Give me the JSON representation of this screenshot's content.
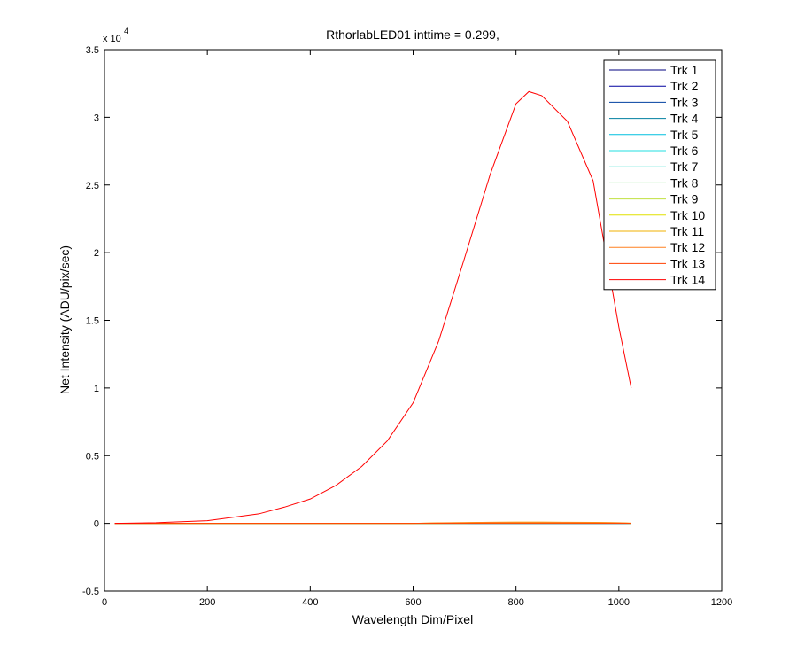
{
  "chart_data": {
    "type": "line",
    "title": "RthorlabLED01 inttime = 0.299,",
    "x_label": "Wavelength Dim/Pixel",
    "y_label": "Net Intensity (ADU/pix/sec)",
    "y_multiplier": "x 10",
    "y_exponent": "4",
    "xlim": [
      0,
      1200
    ],
    "xticks": [
      0,
      200,
      400,
      600,
      800,
      1000,
      1200
    ],
    "ylim": [
      -0.5,
      3.5
    ],
    "yticks": [
      -0.5,
      0,
      0.5,
      1,
      1.5,
      2,
      2.5,
      3,
      3.5
    ],
    "grid": false,
    "legend_position": "upper-right",
    "x": [
      20,
      100,
      200,
      300,
      350,
      400,
      450,
      500,
      550,
      600,
      650,
      700,
      750,
      800,
      825,
      850,
      900,
      950,
      1000,
      1024
    ],
    "series": [
      {
        "name": "Trk 1",
        "color": "#00007f",
        "values": [
          0,
          0,
          0,
          0,
          0,
          0,
          0,
          0,
          0,
          0,
          0,
          0,
          0,
          0,
          0,
          0,
          0,
          0,
          0,
          0
        ]
      },
      {
        "name": "Trk 2",
        "color": "#00009f",
        "values": [
          0,
          0,
          0,
          0,
          0,
          0,
          0,
          0,
          0,
          0,
          0,
          0,
          0,
          0,
          0,
          0,
          0,
          0,
          0,
          0
        ]
      },
      {
        "name": "Trk 3",
        "color": "#0040a0",
        "values": [
          0,
          0,
          0,
          0,
          0,
          0,
          0,
          0,
          0,
          0,
          0,
          0,
          0,
          0,
          0,
          0,
          0,
          0,
          0,
          0
        ]
      },
      {
        "name": "Trk 4",
        "color": "#007fa0",
        "values": [
          0,
          0,
          0,
          0,
          0,
          0,
          0,
          0,
          0,
          0,
          0,
          0,
          0,
          0,
          0,
          0,
          0,
          0,
          0,
          0
        ]
      },
      {
        "name": "Trk 5",
        "color": "#00bfdf",
        "values": [
          0,
          0,
          0,
          0,
          0,
          0,
          0,
          0,
          0,
          0,
          0,
          0,
          0,
          0,
          0,
          0,
          0,
          0,
          0,
          0
        ]
      },
      {
        "name": "Trk 6",
        "color": "#20dfe0",
        "values": [
          0,
          0,
          0,
          0,
          0,
          0,
          0,
          0,
          0,
          0,
          0,
          0,
          0,
          0,
          0,
          0,
          0,
          0,
          0,
          0
        ]
      },
      {
        "name": "Trk 7",
        "color": "#40e0d0",
        "values": [
          0,
          0,
          0,
          0,
          0,
          0,
          0,
          0,
          0,
          0,
          0,
          0,
          0,
          0,
          0,
          0,
          0,
          0,
          0,
          0
        ]
      },
      {
        "name": "Trk 8",
        "color": "#80e080",
        "values": [
          0,
          0,
          0,
          0,
          0,
          0,
          0,
          0,
          0,
          0,
          0,
          0,
          0.002,
          0.002,
          0.002,
          0.002,
          0.002,
          0.002,
          0.001,
          0
        ]
      },
      {
        "name": "Trk 9",
        "color": "#c0e040",
        "values": [
          0,
          0,
          0,
          0,
          0,
          0,
          0,
          0,
          0,
          0,
          0,
          0,
          0.004,
          0.004,
          0.004,
          0.004,
          0.004,
          0.003,
          0.002,
          0
        ]
      },
      {
        "name": "Trk 10",
        "color": "#e0e000",
        "values": [
          0,
          0,
          0,
          0,
          0,
          0,
          0,
          0,
          0,
          0,
          0,
          0.004,
          0.006,
          0.007,
          0.007,
          0.007,
          0.006,
          0.005,
          0.003,
          0
        ]
      },
      {
        "name": "Trk 11",
        "color": "#f0b000",
        "values": [
          0,
          0,
          0,
          0,
          0,
          0,
          0,
          0,
          0,
          0,
          0.004,
          0.006,
          0.008,
          0.009,
          0.009,
          0.009,
          0.008,
          0.007,
          0.005,
          0.002
        ]
      },
      {
        "name": "Trk 12",
        "color": "#ff8020",
        "values": [
          0,
          0,
          0,
          0,
          0,
          0,
          0,
          0,
          0,
          0,
          0.003,
          0.005,
          0.007,
          0.008,
          0.008,
          0.008,
          0.007,
          0.006,
          0.004,
          0.001
        ]
      },
      {
        "name": "Trk 13",
        "color": "#ff4000",
        "values": [
          0,
          0,
          0,
          0,
          0,
          0,
          0,
          0,
          0,
          0,
          0,
          0,
          0,
          0,
          0,
          0,
          0,
          0,
          0,
          0
        ]
      },
      {
        "name": "Trk 14",
        "color": "#ff0000",
        "values": [
          0,
          0.005,
          0.02,
          0.07,
          0.12,
          0.18,
          0.28,
          0.42,
          0.61,
          0.89,
          1.35,
          1.96,
          2.58,
          3.1,
          3.19,
          3.16,
          2.97,
          2.53,
          1.45,
          1.0
        ]
      }
    ]
  }
}
